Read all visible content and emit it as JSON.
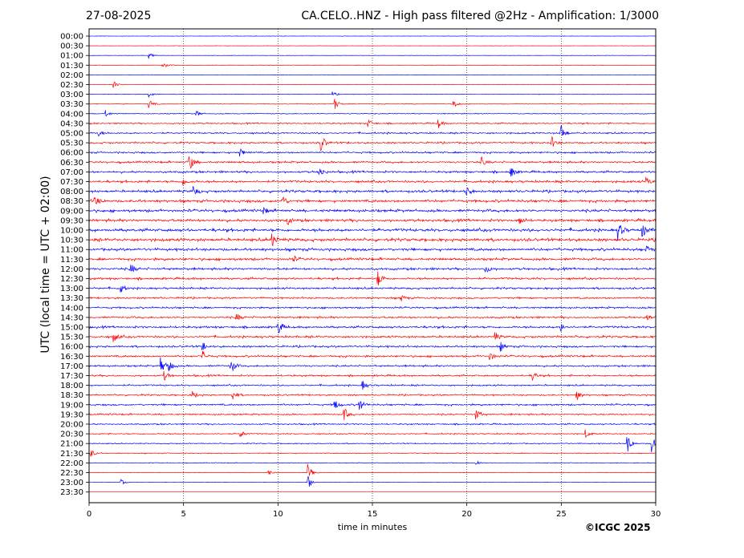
{
  "header": {
    "date": "27-08-2025",
    "title": "CA.CELO..HNZ - High pass filtered @2Hz - Amplification: 1/3000"
  },
  "footer": {
    "copyright": "©ICGC 2025"
  },
  "chart_data": {
    "type": "line",
    "subtype": "helicorder",
    "xlabel": "time in minutes",
    "ylabel": "UTC (local time = UTC + 02:00)",
    "xlim": [
      0,
      30
    ],
    "x_ticks": [
      "0",
      "5",
      "10",
      "15",
      "20",
      "25",
      "30"
    ],
    "vertical_gridlines_at": [
      5,
      10,
      15,
      20,
      25
    ],
    "grid": "vertical dotted",
    "trace_colors": [
      "#ff0000",
      "#0000ff"
    ],
    "rows": [
      {
        "label": "00:00",
        "color": "#0000ff",
        "activity": 0.1,
        "events": []
      },
      {
        "label": "00:30",
        "color": "#ff0000",
        "activity": 0.08,
        "events": []
      },
      {
        "label": "01:00",
        "color": "#0000ff",
        "activity": 0.1,
        "events": [
          [
            3.2,
            1.0
          ]
        ]
      },
      {
        "label": "01:30",
        "color": "#ff0000",
        "activity": 0.1,
        "events": [
          [
            3.9,
            1.5
          ]
        ]
      },
      {
        "label": "02:00",
        "color": "#0000ff",
        "activity": 0.1,
        "events": []
      },
      {
        "label": "02:30",
        "color": "#ff0000",
        "activity": 0.12,
        "events": [
          [
            1.3,
            1.2
          ]
        ]
      },
      {
        "label": "03:00",
        "color": "#0000ff",
        "activity": 0.15,
        "events": [
          [
            3.2,
            1.0
          ],
          [
            12.9,
            1.0
          ]
        ]
      },
      {
        "label": "03:30",
        "color": "#ff0000",
        "activity": 0.2,
        "events": [
          [
            3.2,
            1.5
          ],
          [
            13.0,
            2.0
          ],
          [
            19.3,
            1.5
          ]
        ]
      },
      {
        "label": "04:00",
        "color": "#0000ff",
        "activity": 0.25,
        "events": [
          [
            0.9,
            1.2
          ],
          [
            5.7,
            1.0
          ]
        ]
      },
      {
        "label": "04:30",
        "color": "#ff0000",
        "activity": 0.4,
        "events": [
          [
            14.8,
            1.5
          ],
          [
            18.5,
            1.5
          ]
        ]
      },
      {
        "label": "05:00",
        "color": "#0000ff",
        "activity": 0.45,
        "events": [
          [
            0.5,
            1.0
          ],
          [
            25.0,
            3.0
          ]
        ]
      },
      {
        "label": "05:30",
        "color": "#ff0000",
        "activity": 0.5,
        "events": [
          [
            12.3,
            3.0
          ],
          [
            24.5,
            2.0
          ]
        ]
      },
      {
        "label": "06:00",
        "color": "#0000ff",
        "activity": 0.5,
        "events": [
          [
            8.0,
            1.5
          ]
        ]
      },
      {
        "label": "06:30",
        "color": "#ff0000",
        "activity": 0.55,
        "events": [
          [
            5.3,
            3.5
          ],
          [
            20.8,
            1.5
          ]
        ]
      },
      {
        "label": "07:00",
        "color": "#0000ff",
        "activity": 0.6,
        "events": [
          [
            12.2,
            2.0
          ],
          [
            22.3,
            2.5
          ]
        ]
      },
      {
        "label": "07:30",
        "color": "#ff0000",
        "activity": 0.65,
        "events": [
          [
            5.0,
            1.5
          ],
          [
            29.5,
            1.5
          ]
        ]
      },
      {
        "label": "08:00",
        "color": "#0000ff",
        "activity": 0.7,
        "events": [
          [
            5.5,
            2.0
          ],
          [
            20.0,
            1.5
          ]
        ]
      },
      {
        "label": "08:30",
        "color": "#ff0000",
        "activity": 0.75,
        "events": [
          [
            0.3,
            2.0
          ],
          [
            10.2,
            2.5
          ]
        ]
      },
      {
        "label": "09:00",
        "color": "#0000ff",
        "activity": 0.75,
        "events": [
          [
            9.2,
            1.5
          ]
        ]
      },
      {
        "label": "09:30",
        "color": "#ff0000",
        "activity": 0.75,
        "events": [
          [
            10.5,
            1.5
          ],
          [
            22.8,
            1.5
          ]
        ]
      },
      {
        "label": "10:00",
        "color": "#0000ff",
        "activity": 0.85,
        "events": [
          [
            28.0,
            3.5
          ],
          [
            29.3,
            3.0
          ]
        ]
      },
      {
        "label": "10:30",
        "color": "#ff0000",
        "activity": 0.85,
        "events": [
          [
            9.7,
            2.5
          ]
        ]
      },
      {
        "label": "11:00",
        "color": "#0000ff",
        "activity": 0.75,
        "events": [
          [
            29.5,
            1.5
          ]
        ]
      },
      {
        "label": "11:30",
        "color": "#ff0000",
        "activity": 0.7,
        "events": [
          [
            10.8,
            1.2
          ]
        ]
      },
      {
        "label": "12:00",
        "color": "#0000ff",
        "activity": 0.65,
        "events": [
          [
            2.2,
            2.0
          ],
          [
            21.0,
            1.5
          ]
        ]
      },
      {
        "label": "12:30",
        "color": "#ff0000",
        "activity": 0.6,
        "events": [
          [
            15.3,
            3.0
          ]
        ]
      },
      {
        "label": "13:00",
        "color": "#0000ff",
        "activity": 0.55,
        "events": [
          [
            1.7,
            1.5
          ]
        ]
      },
      {
        "label": "13:30",
        "color": "#ff0000",
        "activity": 0.5,
        "events": [
          [
            16.5,
            1.5
          ]
        ]
      },
      {
        "label": "14:00",
        "color": "#0000ff",
        "activity": 0.5,
        "events": []
      },
      {
        "label": "14:30",
        "color": "#ff0000",
        "activity": 0.55,
        "events": [
          [
            7.8,
            1.5
          ],
          [
            29.5,
            1.5
          ]
        ]
      },
      {
        "label": "15:00",
        "color": "#0000ff",
        "activity": 0.6,
        "events": [
          [
            10.0,
            3.0
          ],
          [
            25.0,
            1.5
          ]
        ]
      },
      {
        "label": "15:30",
        "color": "#ff0000",
        "activity": 0.6,
        "events": [
          [
            1.3,
            2.0
          ],
          [
            21.5,
            1.5
          ]
        ]
      },
      {
        "label": "16:00",
        "color": "#0000ff",
        "activity": 0.55,
        "events": [
          [
            6.0,
            1.5
          ],
          [
            21.8,
            1.5
          ]
        ]
      },
      {
        "label": "16:30",
        "color": "#ff0000",
        "activity": 0.55,
        "events": [
          [
            6.0,
            2.0
          ],
          [
            21.2,
            1.8
          ]
        ]
      },
      {
        "label": "17:00",
        "color": "#0000ff",
        "activity": 0.5,
        "events": [
          [
            3.8,
            3.0
          ],
          [
            4.2,
            2.5
          ],
          [
            7.5,
            3.0
          ]
        ]
      },
      {
        "label": "17:30",
        "color": "#ff0000",
        "activity": 0.5,
        "events": [
          [
            4.0,
            1.5
          ],
          [
            23.5,
            1.5
          ]
        ]
      },
      {
        "label": "18:00",
        "color": "#0000ff",
        "activity": 0.45,
        "events": [
          [
            14.5,
            1.5
          ]
        ]
      },
      {
        "label": "18:30",
        "color": "#ff0000",
        "activity": 0.45,
        "events": [
          [
            5.5,
            1.5
          ],
          [
            7.6,
            2.0
          ],
          [
            25.8,
            2.0
          ]
        ]
      },
      {
        "label": "19:00",
        "color": "#0000ff",
        "activity": 0.5,
        "events": [
          [
            14.3,
            2.5
          ],
          [
            13.0,
            2.0
          ]
        ]
      },
      {
        "label": "19:30",
        "color": "#ff0000",
        "activity": 0.45,
        "events": [
          [
            13.5,
            2.5
          ],
          [
            20.5,
            2.0
          ]
        ]
      },
      {
        "label": "20:00",
        "color": "#0000ff",
        "activity": 0.4,
        "events": []
      },
      {
        "label": "20:30",
        "color": "#ff0000",
        "activity": 0.35,
        "events": [
          [
            8.0,
            1.5
          ],
          [
            26.3,
            1.5
          ]
        ]
      },
      {
        "label": "21:00",
        "color": "#0000ff",
        "activity": 0.3,
        "events": [
          [
            28.5,
            3.5
          ],
          [
            29.8,
            3.0
          ]
        ]
      },
      {
        "label": "21:30",
        "color": "#ff0000",
        "activity": 0.25,
        "events": [
          [
            0.1,
            1.5
          ]
        ]
      },
      {
        "label": "22:00",
        "color": "#0000ff",
        "activity": 0.2,
        "events": [
          [
            20.5,
            1.0
          ]
        ]
      },
      {
        "label": "22:30",
        "color": "#ff0000",
        "activity": 0.15,
        "events": [
          [
            9.5,
            1.0
          ],
          [
            11.6,
            3.0
          ]
        ]
      },
      {
        "label": "23:00",
        "color": "#0000ff",
        "activity": 0.1,
        "events": [
          [
            1.7,
            1.0
          ],
          [
            11.6,
            2.5
          ]
        ]
      },
      {
        "label": "23:30",
        "color": "#ff0000",
        "activity": 0.0,
        "events": []
      }
    ]
  }
}
